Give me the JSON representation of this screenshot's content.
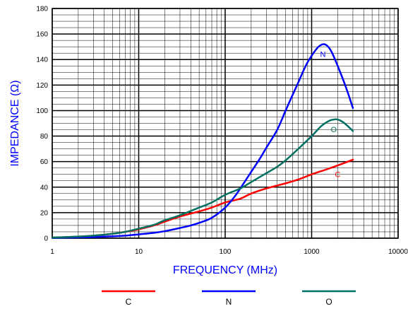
{
  "chart_data": {
    "type": "line",
    "title": "",
    "xlabel": "FREQUENCY (MHz)",
    "ylabel": "IMPEDANCE (Ω)",
    "x_scale": "log",
    "xlim": [
      1,
      10000
    ],
    "ylim": [
      0,
      180
    ],
    "x_ticks": [
      1,
      10,
      100,
      1000,
      10000
    ],
    "x_tick_labels": [
      "1",
      "10",
      "100",
      "1000",
      "10000"
    ],
    "y_ticks": [
      0,
      20,
      40,
      60,
      80,
      100,
      120,
      140,
      160,
      180
    ],
    "y_tick_labels": [
      "0",
      "20",
      "40",
      "60",
      "80",
      "100",
      "120",
      "140",
      "160",
      "180"
    ],
    "grid": true,
    "legend_position": "bottom",
    "series": [
      {
        "name": "C",
        "color": "#ff0000",
        "label_at": [
          2000,
          48
        ],
        "points": [
          [
            1,
            0.5
          ],
          [
            2,
            1.2
          ],
          [
            3,
            2
          ],
          [
            5,
            3.5
          ],
          [
            7,
            5
          ],
          [
            10,
            7
          ],
          [
            15,
            10
          ],
          [
            20,
            13
          ],
          [
            30,
            17
          ],
          [
            50,
            21
          ],
          [
            70,
            24
          ],
          [
            100,
            28
          ],
          [
            150,
            31
          ],
          [
            200,
            35
          ],
          [
            300,
            39
          ],
          [
            500,
            43
          ],
          [
            700,
            46
          ],
          [
            1000,
            50
          ],
          [
            1500,
            54
          ],
          [
            2000,
            57
          ],
          [
            3000,
            61.5
          ]
        ]
      },
      {
        "name": "N",
        "color": "#0000ff",
        "label_at": [
          1350,
          142
        ],
        "points": [
          [
            1,
            0.3
          ],
          [
            2,
            0.6
          ],
          [
            3,
            0.9
          ],
          [
            5,
            1.5
          ],
          [
            7,
            2
          ],
          [
            10,
            3
          ],
          [
            15,
            4.2
          ],
          [
            20,
            5.5
          ],
          [
            30,
            8
          ],
          [
            40,
            10
          ],
          [
            50,
            12
          ],
          [
            70,
            16
          ],
          [
            100,
            24
          ],
          [
            130,
            33
          ],
          [
            160,
            42
          ],
          [
            200,
            52
          ],
          [
            250,
            62
          ],
          [
            300,
            71
          ],
          [
            400,
            85
          ],
          [
            500,
            100
          ],
          [
            600,
            112
          ],
          [
            700,
            122
          ],
          [
            800,
            131
          ],
          [
            900,
            138
          ],
          [
            1000,
            143
          ],
          [
            1100,
            147
          ],
          [
            1200,
            150
          ],
          [
            1350,
            152
          ],
          [
            1500,
            151
          ],
          [
            1700,
            146
          ],
          [
            2000,
            135
          ],
          [
            2500,
            118
          ],
          [
            3000,
            102
          ]
        ]
      },
      {
        "name": "O",
        "color": "#007060",
        "label_at": [
          1800,
          83
        ],
        "points": [
          [
            1,
            0.5
          ],
          [
            2,
            1.3
          ],
          [
            3,
            2
          ],
          [
            5,
            3.5
          ],
          [
            7,
            5
          ],
          [
            10,
            7.5
          ],
          [
            15,
            10.5
          ],
          [
            20,
            14
          ],
          [
            30,
            18
          ],
          [
            50,
            24
          ],
          [
            70,
            28
          ],
          [
            100,
            34
          ],
          [
            150,
            39
          ],
          [
            200,
            44
          ],
          [
            300,
            51
          ],
          [
            400,
            56
          ],
          [
            500,
            61
          ],
          [
            700,
            70
          ],
          [
            1000,
            80
          ],
          [
            1300,
            88
          ],
          [
            1600,
            92
          ],
          [
            1800,
            93
          ],
          [
            2000,
            93
          ],
          [
            2300,
            91
          ],
          [
            2700,
            87
          ],
          [
            3000,
            84
          ]
        ]
      }
    ],
    "legend": [
      {
        "label": "C",
        "color": "#ff0000"
      },
      {
        "label": "N",
        "color": "#0000ff"
      },
      {
        "label": "O",
        "color": "#007060"
      }
    ]
  }
}
